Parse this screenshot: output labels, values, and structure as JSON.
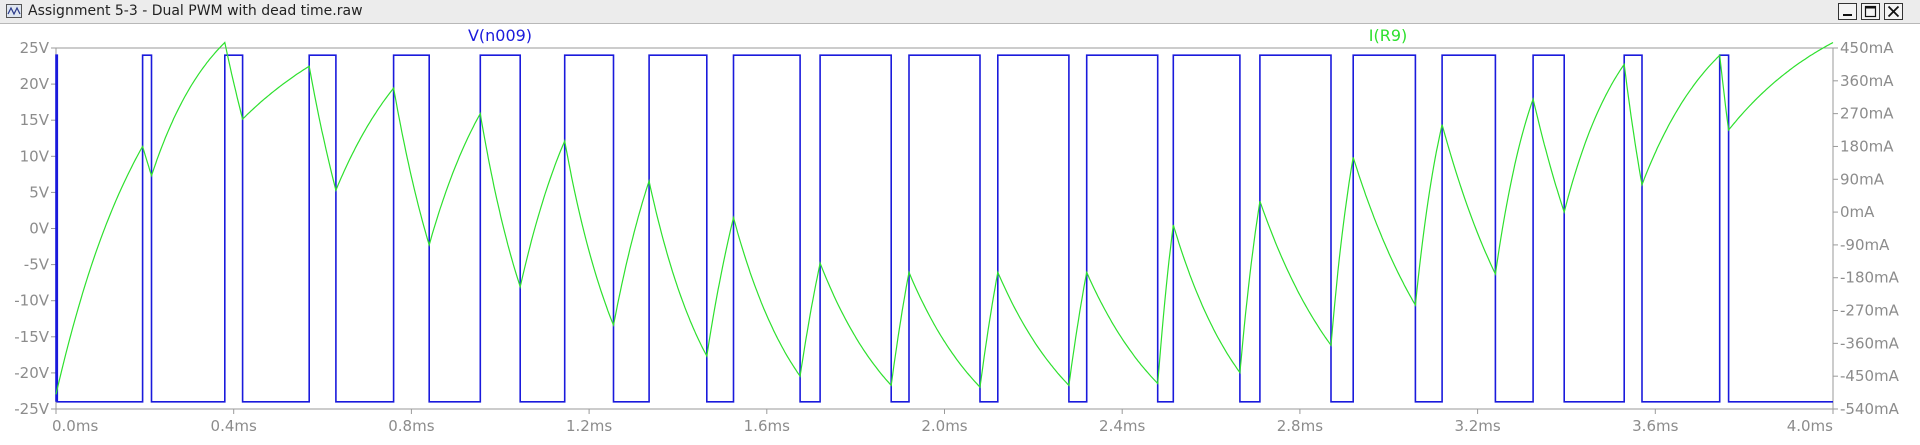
{
  "window": {
    "title": "Assignment 5-3 - Dual PWM with dead time.raw",
    "icon": "waveform-viewer-icon",
    "controls": [
      "minimize-icon",
      "maximize-icon",
      "close-icon"
    ]
  },
  "chart_data": {
    "type": "line",
    "grid": false,
    "x_axis": {
      "range_ms": [
        0.0,
        4.0
      ],
      "ticks": [
        0.0,
        0.4,
        0.8,
        1.2,
        1.6,
        2.0,
        2.4,
        2.8,
        3.2,
        3.6,
        4.0
      ],
      "tick_labels": [
        "0.0ms",
        "0.4ms",
        "0.8ms",
        "1.2ms",
        "1.6ms",
        "2.0ms",
        "2.4ms",
        "2.8ms",
        "3.2ms",
        "3.6ms",
        "4.0ms"
      ]
    },
    "y_left": {
      "range": [
        -25,
        25
      ],
      "ticks": [
        25,
        20,
        15,
        10,
        5,
        0,
        -5,
        -10,
        -15,
        -20,
        -25
      ],
      "tick_labels": [
        "25V",
        "20V",
        "15V",
        "10V",
        "5V",
        "0V",
        "-5V",
        "-10V",
        "-15V",
        "-20V",
        "-25V"
      ]
    },
    "y_right": {
      "range": [
        -540,
        450
      ],
      "ticks": [
        450,
        360,
        270,
        180,
        90,
        0,
        -90,
        -180,
        -270,
        -360,
        -450,
        -540
      ],
      "tick_labels": [
        "450mA",
        "360mA",
        "270mA",
        "180mA",
        "90mA",
        "0mA",
        "-90mA",
        "-180mA",
        "-270mA",
        "-360mA",
        "-450mA",
        "-540mA"
      ]
    },
    "series": [
      {
        "name": "V(n009)",
        "color": "#1a1adc",
        "axis": "left",
        "high_v": 24,
        "low_v": -24,
        "pulses_ms": [
          [
            0.195,
            0.215
          ],
          [
            0.38,
            0.42
          ],
          [
            0.57,
            0.63
          ],
          [
            0.76,
            0.84
          ],
          [
            0.955,
            1.045
          ],
          [
            1.145,
            1.255
          ],
          [
            1.335,
            1.465
          ],
          [
            1.525,
            1.675
          ],
          [
            1.72,
            1.88
          ],
          [
            1.92,
            2.08
          ],
          [
            2.12,
            2.28
          ],
          [
            2.32,
            2.48
          ],
          [
            2.515,
            2.665
          ],
          [
            2.71,
            2.87
          ],
          [
            2.92,
            3.06
          ],
          [
            3.12,
            3.24
          ],
          [
            3.325,
            3.395
          ],
          [
            3.53,
            3.57
          ],
          [
            3.745,
            3.765
          ]
        ]
      },
      {
        "name": "I(R9)",
        "color": "#2ee02e",
        "axis": "right",
        "points_ms_mA": [
          [
            0.0,
            -500
          ],
          [
            0.195,
            180
          ],
          [
            0.215,
            100
          ],
          [
            0.38,
            465
          ],
          [
            0.42,
            255
          ],
          [
            0.57,
            400
          ],
          [
            0.63,
            60
          ],
          [
            0.76,
            340
          ],
          [
            0.84,
            -90
          ],
          [
            0.955,
            270
          ],
          [
            1.045,
            -205
          ],
          [
            1.145,
            195
          ],
          [
            1.255,
            -310
          ],
          [
            1.335,
            85
          ],
          [
            1.465,
            -395
          ],
          [
            1.525,
            -15
          ],
          [
            1.675,
            -450
          ],
          [
            1.72,
            -140
          ],
          [
            1.88,
            -475
          ],
          [
            1.92,
            -165
          ],
          [
            2.08,
            -480
          ],
          [
            2.12,
            -165
          ],
          [
            2.28,
            -475
          ],
          [
            2.32,
            -165
          ],
          [
            2.48,
            -470
          ],
          [
            2.515,
            -35
          ],
          [
            2.665,
            -440
          ],
          [
            2.71,
            30
          ],
          [
            2.87,
            -365
          ],
          [
            2.92,
            150
          ],
          [
            3.06,
            -255
          ],
          [
            3.12,
            240
          ],
          [
            3.24,
            -170
          ],
          [
            3.325,
            310
          ],
          [
            3.395,
            0
          ],
          [
            3.53,
            405
          ],
          [
            3.57,
            75
          ],
          [
            3.745,
            430
          ],
          [
            3.765,
            225
          ],
          [
            4.0,
            465
          ]
        ]
      }
    ]
  }
}
